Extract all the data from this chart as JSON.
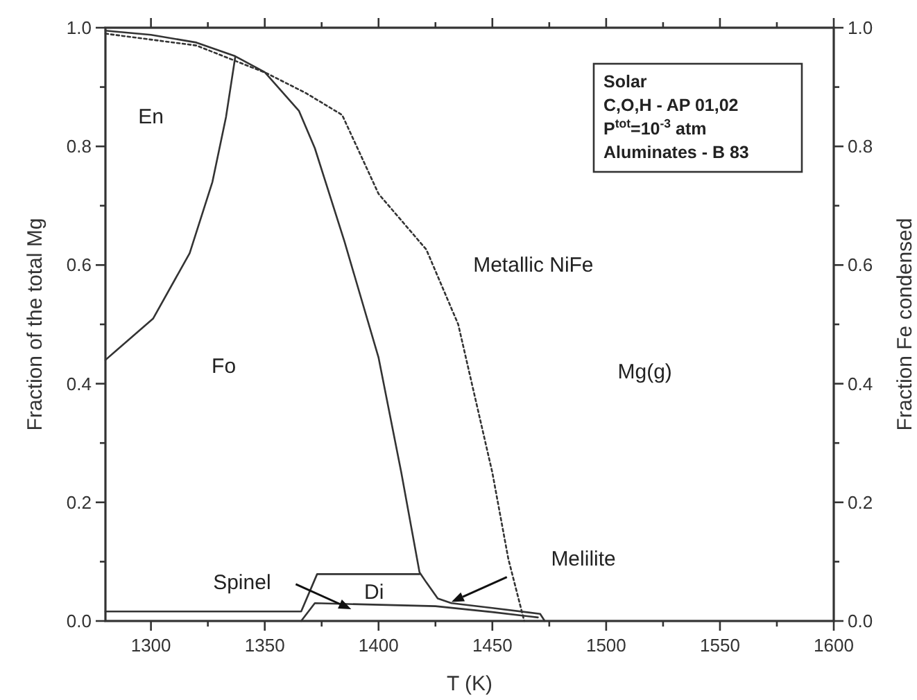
{
  "chart_data": {
    "type": "line",
    "xlabel": "T (K)",
    "ylabel": "Fraction of the total Mg",
    "y2label": "Fraction Fe condensed",
    "xlim": [
      1280,
      1600
    ],
    "xticks": [
      1300,
      {
        "value": 1325,
        "label": null
      },
      1350,
      {
        "value": 1375,
        "label": null
      },
      1400,
      {
        "value": 1425,
        "label": null
      },
      1450,
      {
        "value": 1475,
        "label": null
      },
      1500,
      {
        "value": 1525,
        "label": null
      },
      1550,
      {
        "value": 1575,
        "label": null
      },
      1600
    ],
    "ylim": [
      0,
      1
    ],
    "yticks": [
      {
        "value": 0,
        "label": "0.0"
      },
      {
        "value": 0.1,
        "label": null
      },
      0.2,
      {
        "value": 0.3,
        "label": null
      },
      0.4,
      {
        "value": 0.5,
        "label": null
      },
      0.6,
      {
        "value": 0.7,
        "label": null
      },
      0.8,
      {
        "value": 0.9,
        "label": null
      },
      {
        "value": 1,
        "label": "1.0"
      }
    ],
    "y2lim": [
      0,
      1
    ],
    "y2ticks": [
      {
        "value": 0,
        "label": "0.0"
      },
      {
        "value": 0.1,
        "label": null
      },
      0.2,
      {
        "value": 0.3,
        "label": null
      },
      0.4,
      {
        "value": 0.5,
        "label": null
      },
      0.6,
      {
        "value": 0.7,
        "label": null
      },
      0.8,
      {
        "value": 0.9,
        "label": null
      },
      {
        "value": 1,
        "label": "1.0"
      }
    ],
    "grid": false,
    "marker": "none",
    "series": [
      {
        "color": "#333333",
        "line_style": "solid",
        "x": [
          1280,
          1301,
          1317,
          1327,
          1333,
          1337
        ],
        "values": [
          0.44,
          0.51,
          0.62,
          0.74,
          0.85,
          0.95
        ]
      },
      {
        "color": "#333333",
        "line_style": "solid",
        "x": [
          1280,
          1300,
          1320,
          1337,
          1350,
          1365,
          1372,
          1385,
          1400,
          1410,
          1418,
          1421,
          1426,
          1432,
          1450,
          1471,
          1473
        ],
        "values": [
          0.995,
          0.988,
          0.975,
          0.952,
          0.925,
          0.86,
          0.797,
          0.64,
          0.444,
          0.25,
          0.082,
          0.065,
          0.038,
          0.03,
          0.022,
          0.012,
          0
        ]
      },
      {
        "color": "#333333",
        "line_style": "solid",
        "x": [
          1280,
          1366,
          1373,
          1418
        ],
        "values": [
          0.016,
          0.016,
          0.079,
          0.079
        ]
      },
      {
        "color": "#333333",
        "line_style": "solid",
        "x": [
          1366,
          1372,
          1425,
          1450,
          1470
        ],
        "values": [
          0,
          0.03,
          0.025,
          0.015,
          0.006
        ]
      },
      {
        "color": "#333333",
        "line_style": "dotted",
        "x": [
          1280,
          1320,
          1351,
          1368,
          1384,
          1400,
          1421,
          1435,
          1450,
          1457,
          1464
        ],
        "values": [
          0.99,
          0.97,
          0.923,
          0.89,
          0.853,
          0.72,
          0.626,
          0.5,
          0.25,
          0.105,
          0
        ]
      }
    ],
    "annotations": [
      "En",
      "Fo",
      "Metallic NiFe",
      "Mg(g)",
      "Di",
      "Spinel",
      "Melilite",
      "Solar",
      "C,O,H - AP 01,02",
      "P$^{tot}$=10$^{-3}$ atm",
      "Aluminates - B 83"
    ]
  }
}
